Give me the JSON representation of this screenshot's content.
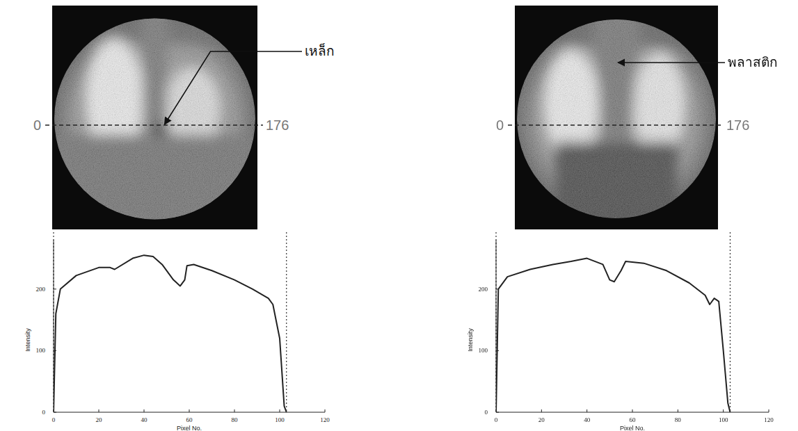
{
  "chart_data": [
    {
      "type": "line",
      "x_label": "Pixel No.",
      "y_label": "Intensity",
      "x": [
        0,
        1,
        3,
        10,
        20,
        25,
        27,
        35,
        40,
        44,
        48,
        53,
        56,
        58,
        59,
        62,
        70,
        80,
        88,
        95,
        97,
        100,
        102,
        103
      ],
      "values": [
        0,
        160,
        200,
        222,
        235,
        235,
        232,
        250,
        255,
        253,
        240,
        215,
        205,
        215,
        238,
        240,
        230,
        215,
        200,
        185,
        175,
        120,
        10,
        0
      ],
      "color": "#222222",
      "xlim": [
        0,
        120
      ],
      "ylim": [
        0,
        280
      ],
      "xticks": [
        0,
        20,
        40,
        60,
        80,
        100,
        120
      ],
      "yticks": [
        0,
        100,
        200
      ],
      "grid": false
    },
    {
      "type": "line",
      "x_label": "Pixel No.",
      "y_label": "Intensity",
      "x": [
        0,
        1,
        5,
        15,
        25,
        33,
        40,
        47,
        50,
        52,
        55,
        57,
        65,
        75,
        85,
        92,
        94,
        96,
        98,
        100,
        102,
        103
      ],
      "values": [
        0,
        200,
        220,
        232,
        240,
        245,
        250,
        240,
        215,
        212,
        230,
        245,
        242,
        230,
        210,
        190,
        175,
        185,
        180,
        100,
        15,
        0
      ],
      "color": "#222222",
      "xlim": [
        0,
        120
      ],
      "ylim": [
        0,
        280
      ],
      "xticks": [
        0,
        20,
        40,
        60,
        80,
        100,
        120
      ],
      "yticks": [
        0,
        100,
        200
      ],
      "grid": false
    }
  ],
  "images": [
    {
      "label": "เหล็ก",
      "scan_start": 0,
      "scan_end": 176
    },
    {
      "label": "พลาสติก",
      "scan_start": 0,
      "scan_end": 176
    }
  ]
}
